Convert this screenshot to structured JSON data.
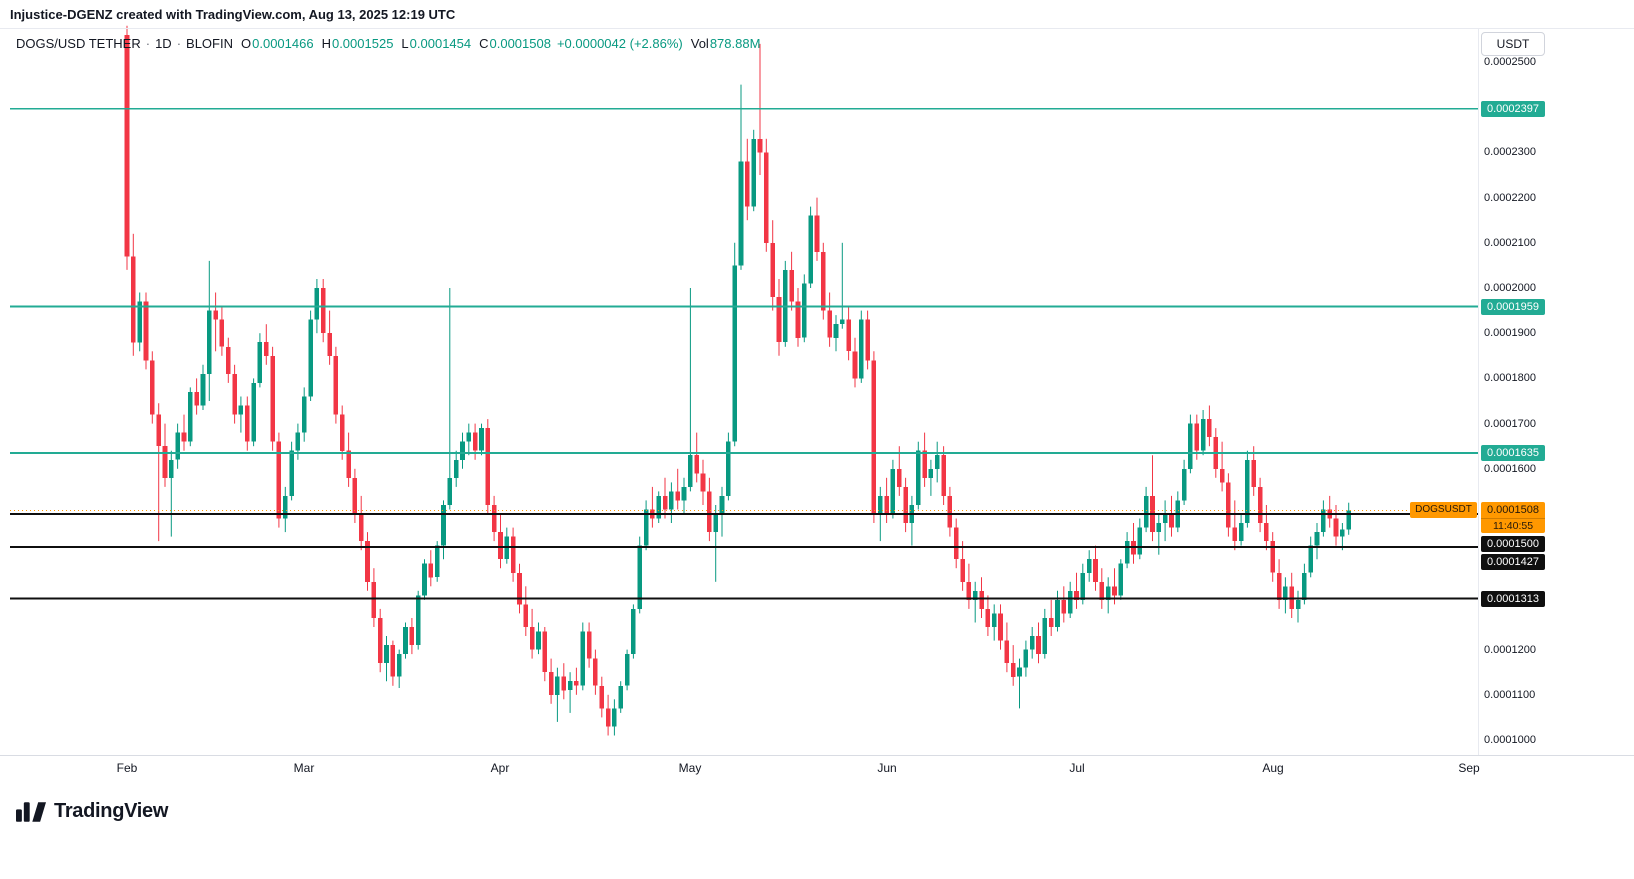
{
  "attribution": "Injustice-DGENZ created with TradingView.com, Aug 13, 2025 12:19 UTC",
  "legend": {
    "symbol": "DOGS/USD TETHER",
    "separator": "·",
    "interval": "1D",
    "exchange": "BLOFIN",
    "o_label": "O",
    "o": "0.0001466",
    "h_label": "H",
    "h": "0.0001525",
    "l_label": "L",
    "l": "0.0001454",
    "c_label": "C",
    "c": "0.0001508",
    "change": "+0.0000042 (+2.86%)",
    "vol_label": "Vol",
    "vol": "878.88M"
  },
  "colors": {
    "up": "#089981",
    "down": "#f23645",
    "level_teal": "#22ab94",
    "level_black": "#0f0f0f",
    "accent_orange": "#ff9800",
    "axis_text": "#131722"
  },
  "price_axis": {
    "currency_button": "USDT",
    "ticks": [
      {
        "label": "0.0002500",
        "units": 2500
      },
      {
        "label": "0.0002300",
        "units": 2300
      },
      {
        "label": "0.0002200",
        "units": 2200
      },
      {
        "label": "0.0002100",
        "units": 2100
      },
      {
        "label": "0.0002000",
        "units": 2000
      },
      {
        "label": "0.0001900",
        "units": 1900
      },
      {
        "label": "0.0001800",
        "units": 1800
      },
      {
        "label": "0.0001700",
        "units": 1700
      },
      {
        "label": "0.0001600",
        "units": 1600
      },
      {
        "label": "0.0001200",
        "units": 1200
      },
      {
        "label": "0.0001100",
        "units": 1100
      },
      {
        "label": "0.0001000",
        "units": 1000
      }
    ],
    "badges": [
      {
        "label": "0.0002397",
        "units": 2397,
        "type": "level-teal"
      },
      {
        "label": "0.0001959",
        "units": 1959,
        "type": "level-teal"
      },
      {
        "label": "0.0001635",
        "units": 1635,
        "type": "level-teal"
      },
      {
        "label": "0.0001508",
        "units": 1508,
        "type": "symbol-orange",
        "tag": "DOGSUSDT",
        "countdown": "11:40:55"
      },
      {
        "label": "0.0001500",
        "units": 1500,
        "type": "level-black"
      },
      {
        "label": "0.0001427",
        "units": 1427,
        "type": "level-black"
      },
      {
        "label": "0.0001313",
        "units": 1313,
        "type": "level-black"
      }
    ]
  },
  "footer": {
    "brand": "TradingView"
  },
  "chart_data": {
    "type": "candlestick",
    "title": "DOGS/USD TETHER",
    "interval": "1D",
    "exchange": "BLOFIN",
    "grid": false,
    "price_unit": 1e-07,
    "ylim_units": [
      1000,
      2570
    ],
    "months": [
      {
        "label": "Feb",
        "day_index": 0
      },
      {
        "label": "Mar",
        "day_index": 28
      },
      {
        "label": "Apr",
        "day_index": 59
      },
      {
        "label": "May",
        "day_index": 89
      },
      {
        "label": "Jun",
        "day_index": 120
      },
      {
        "label": "Jul",
        "day_index": 150
      },
      {
        "label": "Aug",
        "day_index": 181
      },
      {
        "label": "Sep",
        "day_index": 212
      }
    ],
    "levels": [
      {
        "price_label": "0.0002397",
        "units": 2397,
        "color": "#22ab94",
        "style": "solid"
      },
      {
        "price_label": "0.0001959",
        "units": 1959,
        "color": "#22ab94",
        "style": "solid"
      },
      {
        "price_label": "0.0001635",
        "units": 1635,
        "color": "#22ab94",
        "style": "solid"
      },
      {
        "price_label": "0.0001508",
        "units": 1508,
        "color": "#ff9800",
        "style": "dotted"
      },
      {
        "price_label": "0.0001500",
        "units": 1500,
        "color": "#0f0f0f",
        "style": "solid"
      },
      {
        "price_label": "0.0001427",
        "units": 1427,
        "color": "#0f0f0f",
        "style": "solid"
      },
      {
        "price_label": "0.0001313",
        "units": 1313,
        "color": "#0f0f0f",
        "style": "solid"
      }
    ],
    "candles": [
      [
        2560,
        2580,
        2040,
        2070
      ],
      [
        2070,
        2120,
        1850,
        1880
      ],
      [
        1880,
        1990,
        1860,
        1970
      ],
      [
        1970,
        1990,
        1820,
        1840
      ],
      [
        1840,
        1860,
        1700,
        1720
      ],
      [
        1720,
        1745,
        1440,
        1650
      ],
      [
        1650,
        1700,
        1560,
        1580
      ],
      [
        1580,
        1640,
        1450,
        1620
      ],
      [
        1620,
        1700,
        1600,
        1680
      ],
      [
        1680,
        1720,
        1640,
        1660
      ],
      [
        1660,
        1780,
        1650,
        1770
      ],
      [
        1770,
        1800,
        1720,
        1740
      ],
      [
        1740,
        1830,
        1730,
        1810
      ],
      [
        1810,
        2060,
        1750,
        1950
      ],
      [
        1950,
        1990,
        1860,
        1930
      ],
      [
        1930,
        1960,
        1850,
        1870
      ],
      [
        1870,
        1890,
        1790,
        1810
      ],
      [
        1810,
        1830,
        1700,
        1720
      ],
      [
        1720,
        1760,
        1680,
        1740
      ],
      [
        1740,
        1760,
        1640,
        1660
      ],
      [
        1660,
        1800,
        1650,
        1790
      ],
      [
        1790,
        1900,
        1780,
        1880
      ],
      [
        1880,
        1920,
        1830,
        1850
      ],
      [
        1850,
        1870,
        1640,
        1660
      ],
      [
        1660,
        1680,
        1470,
        1490
      ],
      [
        1490,
        1560,
        1460,
        1540
      ],
      [
        1540,
        1660,
        1530,
        1640
      ],
      [
        1640,
        1700,
        1620,
        1680
      ],
      [
        1680,
        1780,
        1660,
        1760
      ],
      [
        1760,
        1950,
        1750,
        1930
      ],
      [
        1930,
        2020,
        1900,
        2000
      ],
      [
        2000,
        2020,
        1880,
        1900
      ],
      [
        1900,
        1950,
        1830,
        1850
      ],
      [
        1850,
        1870,
        1700,
        1720
      ],
      [
        1720,
        1740,
        1620,
        1640
      ],
      [
        1640,
        1680,
        1560,
        1580
      ],
      [
        1580,
        1600,
        1480,
        1500
      ],
      [
        1500,
        1540,
        1420,
        1440
      ],
      [
        1440,
        1460,
        1330,
        1350
      ],
      [
        1350,
        1380,
        1250,
        1270
      ],
      [
        1270,
        1290,
        1150,
        1170
      ],
      [
        1170,
        1230,
        1130,
        1210
      ],
      [
        1210,
        1220,
        1120,
        1140
      ],
      [
        1140,
        1200,
        1115,
        1190
      ],
      [
        1190,
        1260,
        1180,
        1250
      ],
      [
        1250,
        1270,
        1190,
        1210
      ],
      [
        1210,
        1330,
        1200,
        1320
      ],
      [
        1320,
        1400,
        1310,
        1390
      ],
      [
        1390,
        1420,
        1340,
        1360
      ],
      [
        1360,
        1440,
        1350,
        1430
      ],
      [
        1430,
        1530,
        1400,
        1520
      ],
      [
        1520,
        2000,
        1510,
        1580
      ],
      [
        1580,
        1640,
        1560,
        1620
      ],
      [
        1620,
        1680,
        1600,
        1660
      ],
      [
        1660,
        1700,
        1630,
        1680
      ],
      [
        1680,
        1700,
        1620,
        1640
      ],
      [
        1640,
        1700,
        1630,
        1690
      ],
      [
        1690,
        1710,
        1500,
        1520
      ],
      [
        1520,
        1540,
        1440,
        1460
      ],
      [
        1460,
        1500,
        1380,
        1400
      ],
      [
        1400,
        1470,
        1390,
        1450
      ],
      [
        1450,
        1470,
        1350,
        1370
      ],
      [
        1370,
        1390,
        1280,
        1300
      ],
      [
        1300,
        1340,
        1230,
        1250
      ],
      [
        1250,
        1290,
        1180,
        1200
      ],
      [
        1200,
        1260,
        1190,
        1240
      ],
      [
        1240,
        1250,
        1130,
        1150
      ],
      [
        1150,
        1180,
        1080,
        1100
      ],
      [
        1100,
        1160,
        1040,
        1140
      ],
      [
        1140,
        1170,
        1090,
        1110
      ],
      [
        1110,
        1150,
        1060,
        1130
      ],
      [
        1130,
        1160,
        1100,
        1120
      ],
      [
        1120,
        1260,
        1110,
        1240
      ],
      [
        1240,
        1260,
        1160,
        1180
      ],
      [
        1180,
        1200,
        1100,
        1120
      ],
      [
        1120,
        1140,
        1050,
        1070
      ],
      [
        1070,
        1100,
        1010,
        1030
      ],
      [
        1030,
        1090,
        1010,
        1070
      ],
      [
        1070,
        1130,
        1060,
        1120
      ],
      [
        1120,
        1200,
        1110,
        1190
      ],
      [
        1190,
        1300,
        1180,
        1290
      ],
      [
        1290,
        1450,
        1280,
        1430
      ],
      [
        1430,
        1530,
        1420,
        1510
      ],
      [
        1510,
        1560,
        1470,
        1490
      ],
      [
        1490,
        1550,
        1480,
        1540
      ],
      [
        1540,
        1580,
        1490,
        1510
      ],
      [
        1510,
        1570,
        1480,
        1550
      ],
      [
        1550,
        1600,
        1510,
        1530
      ],
      [
        1530,
        1580,
        1500,
        1560
      ],
      [
        1560,
        2000,
        1550,
        1630
      ],
      [
        1630,
        1680,
        1570,
        1590
      ],
      [
        1590,
        1620,
        1520,
        1550
      ],
      [
        1550,
        1580,
        1440,
        1460
      ],
      [
        1460,
        1520,
        1350,
        1500
      ],
      [
        1500,
        1560,
        1450,
        1540
      ],
      [
        1540,
        1680,
        1530,
        1660
      ],
      [
        1660,
        2100,
        1650,
        2050
      ],
      [
        2050,
        2450,
        2040,
        2280
      ],
      [
        2280,
        2330,
        2150,
        2180
      ],
      [
        2180,
        2350,
        2170,
        2330
      ],
      [
        2330,
        2540,
        2250,
        2300
      ],
      [
        2300,
        2330,
        2080,
        2100
      ],
      [
        2100,
        2150,
        1950,
        1980
      ],
      [
        1980,
        2020,
        1850,
        1880
      ],
      [
        1880,
        2060,
        1870,
        2040
      ],
      [
        2040,
        2080,
        1950,
        1970
      ],
      [
        1970,
        2000,
        1870,
        1890
      ],
      [
        1890,
        2030,
        1880,
        2010
      ],
      [
        2010,
        2180,
        2000,
        2160
      ],
      [
        2160,
        2200,
        2060,
        2080
      ],
      [
        2080,
        2100,
        1930,
        1950
      ],
      [
        1950,
        1990,
        1870,
        1890
      ],
      [
        1890,
        1940,
        1860,
        1920
      ],
      [
        1920,
        2100,
        1910,
        1930
      ],
      [
        1930,
        1960,
        1840,
        1860
      ],
      [
        1860,
        1890,
        1780,
        1800
      ],
      [
        1800,
        1950,
        1790,
        1930
      ],
      [
        1930,
        1950,
        1820,
        1840
      ],
      [
        1840,
        1860,
        1480,
        1500
      ],
      [
        1500,
        1560,
        1440,
        1540
      ],
      [
        1540,
        1580,
        1480,
        1500
      ],
      [
        1500,
        1620,
        1490,
        1600
      ],
      [
        1600,
        1650,
        1540,
        1560
      ],
      [
        1560,
        1580,
        1460,
        1480
      ],
      [
        1480,
        1540,
        1430,
        1520
      ],
      [
        1520,
        1660,
        1510,
        1640
      ],
      [
        1640,
        1680,
        1560,
        1580
      ],
      [
        1580,
        1620,
        1540,
        1600
      ],
      [
        1600,
        1660,
        1570,
        1630
      ],
      [
        1630,
        1650,
        1520,
        1540
      ],
      [
        1540,
        1560,
        1450,
        1470
      ],
      [
        1470,
        1490,
        1380,
        1400
      ],
      [
        1400,
        1440,
        1330,
        1350
      ],
      [
        1350,
        1390,
        1290,
        1310
      ],
      [
        1310,
        1350,
        1260,
        1330
      ],
      [
        1330,
        1360,
        1270,
        1290
      ],
      [
        1290,
        1320,
        1230,
        1250
      ],
      [
        1250,
        1300,
        1220,
        1280
      ],
      [
        1280,
        1300,
        1200,
        1220
      ],
      [
        1220,
        1260,
        1150,
        1170
      ],
      [
        1170,
        1210,
        1120,
        1140
      ],
      [
        1140,
        1180,
        1070,
        1160
      ],
      [
        1160,
        1220,
        1140,
        1200
      ],
      [
        1200,
        1250,
        1180,
        1230
      ],
      [
        1230,
        1260,
        1170,
        1190
      ],
      [
        1190,
        1290,
        1180,
        1270
      ],
      [
        1270,
        1310,
        1230,
        1250
      ],
      [
        1250,
        1330,
        1240,
        1310
      ],
      [
        1310,
        1340,
        1260,
        1280
      ],
      [
        1280,
        1350,
        1270,
        1330
      ],
      [
        1330,
        1370,
        1290,
        1310
      ],
      [
        1310,
        1390,
        1300,
        1370
      ],
      [
        1370,
        1420,
        1350,
        1400
      ],
      [
        1400,
        1430,
        1330,
        1350
      ],
      [
        1350,
        1380,
        1290,
        1310
      ],
      [
        1310,
        1360,
        1280,
        1340
      ],
      [
        1340,
        1380,
        1300,
        1320
      ],
      [
        1320,
        1400,
        1310,
        1390
      ],
      [
        1390,
        1460,
        1380,
        1440
      ],
      [
        1440,
        1480,
        1390,
        1410
      ],
      [
        1410,
        1490,
        1400,
        1470
      ],
      [
        1470,
        1560,
        1460,
        1540
      ],
      [
        1540,
        1630,
        1440,
        1460
      ],
      [
        1460,
        1500,
        1410,
        1480
      ],
      [
        1480,
        1530,
        1440,
        1500
      ],
      [
        1500,
        1540,
        1450,
        1470
      ],
      [
        1470,
        1550,
        1460,
        1530
      ],
      [
        1530,
        1620,
        1520,
        1600
      ],
      [
        1600,
        1720,
        1590,
        1700
      ],
      [
        1700,
        1720,
        1620,
        1640
      ],
      [
        1640,
        1730,
        1630,
        1710
      ],
      [
        1710,
        1740,
        1650,
        1670
      ],
      [
        1670,
        1690,
        1580,
        1600
      ],
      [
        1600,
        1660,
        1550,
        1570
      ],
      [
        1570,
        1590,
        1450,
        1470
      ],
      [
        1470,
        1530,
        1420,
        1440
      ],
      [
        1440,
        1500,
        1430,
        1480
      ],
      [
        1480,
        1640,
        1470,
        1620
      ],
      [
        1620,
        1650,
        1540,
        1560
      ],
      [
        1560,
        1580,
        1460,
        1480
      ],
      [
        1480,
        1520,
        1420,
        1440
      ],
      [
        1440,
        1460,
        1350,
        1370
      ],
      [
        1370,
        1400,
        1290,
        1310
      ],
      [
        1310,
        1360,
        1280,
        1340
      ],
      [
        1340,
        1370,
        1270,
        1290
      ],
      [
        1290,
        1330,
        1260,
        1310
      ],
      [
        1310,
        1390,
        1300,
        1370
      ],
      [
        1370,
        1450,
        1360,
        1430
      ],
      [
        1430,
        1480,
        1400,
        1460
      ],
      [
        1460,
        1530,
        1450,
        1510
      ],
      [
        1510,
        1540,
        1470,
        1490
      ],
      [
        1490,
        1520,
        1430,
        1450
      ],
      [
        1450,
        1480,
        1420,
        1466
      ],
      [
        1466,
        1525,
        1454,
        1508
      ]
    ]
  }
}
